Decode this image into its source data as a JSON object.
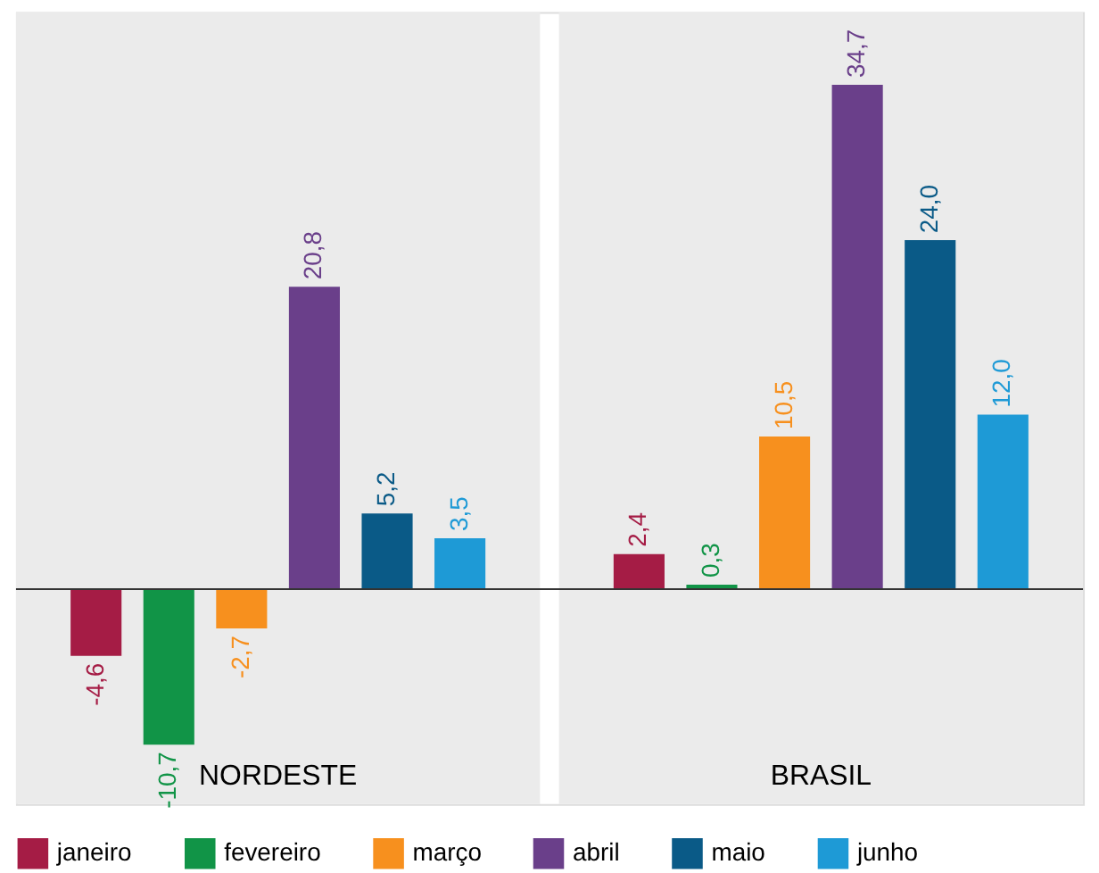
{
  "chart_data": {
    "type": "bar",
    "categories": [
      "NORDESTE",
      "BRASIL"
    ],
    "series": [
      {
        "name": "janeiro",
        "color": "#a51c45",
        "values": [
          -4.6,
          2.4
        ],
        "value_labels": [
          "-4,6",
          "2,4"
        ]
      },
      {
        "name": "fevereiro",
        "color": "#119447",
        "values": [
          -10.7,
          0.3
        ],
        "value_labels": [
          "-10,7",
          "0,3"
        ]
      },
      {
        "name": "março",
        "color": "#f7901e",
        "values": [
          -2.7,
          10.5
        ],
        "value_labels": [
          "-2,7",
          "10,5"
        ]
      },
      {
        "name": "abril",
        "color": "#6a3f8a",
        "values": [
          20.8,
          34.7
        ],
        "value_labels": [
          "20,8",
          "34,7"
        ]
      },
      {
        "name": "maio",
        "color": "#0a5a87",
        "values": [
          5.2,
          24.0
        ],
        "value_labels": [
          "5,2",
          "24,0"
        ]
      },
      {
        "name": "junho",
        "color": "#1e9ad6",
        "values": [
          3.5,
          12.0
        ],
        "value_labels": [
          "3,5",
          "12,0"
        ]
      }
    ],
    "legend": "bottom"
  }
}
